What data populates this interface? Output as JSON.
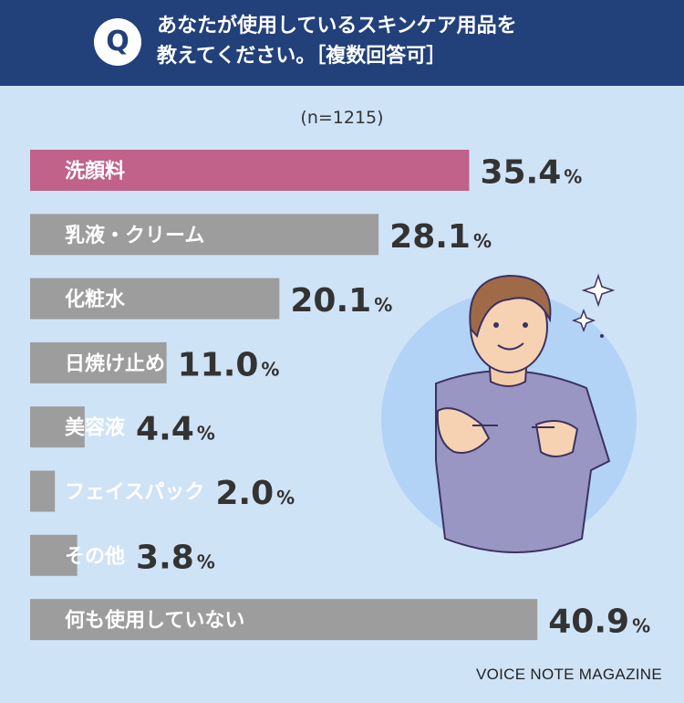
{
  "header": {
    "badge": "Q",
    "line1": "あなたが使用しているスキンケア用品を",
    "line2": "教えてください。［複数回答可］"
  },
  "sample": "(n=1215)",
  "credit": "VOICE NOTE MAGAZINE",
  "colors": {
    "highlight": "#c0628a",
    "bar": "#9d9d9d",
    "header": "#22407a",
    "background": "#cfe3f7"
  },
  "chart_data": {
    "type": "bar",
    "orientation": "horizontal",
    "categories": [
      "洗顔料",
      "乳液・クリーム",
      "化粧水",
      "日焼け止め",
      "美容液",
      "フェイスパック",
      "その他",
      "何も使用していない"
    ],
    "values": [
      35.4,
      28.1,
      20.1,
      11.0,
      4.4,
      2.0,
      3.8,
      40.9
    ],
    "value_labels": [
      "35.4",
      "28.1",
      "20.1",
      "11.0",
      "4.4",
      "2.0",
      "3.8",
      "40.9"
    ],
    "unit": "%",
    "highlight_index": 0
  }
}
